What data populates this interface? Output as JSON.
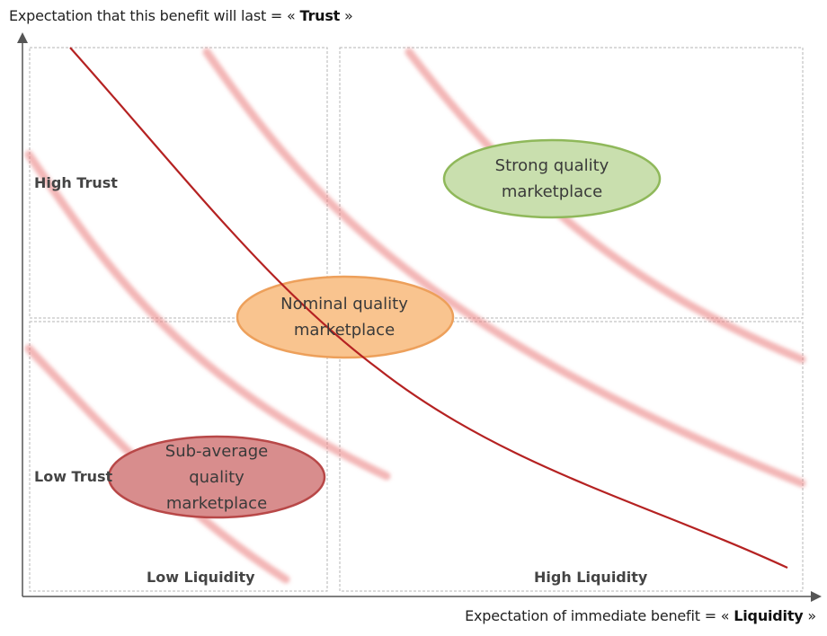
{
  "axes": {
    "y": {
      "prefix": "Expectation that this benefit will last = «",
      "keyword": "Trust",
      "suffix": "»"
    },
    "x": {
      "prefix": "Expectation of immediate benefit = «",
      "keyword": "Liquidity",
      "suffix": "»"
    }
  },
  "quadrant_labels": {
    "high_trust": "High Trust",
    "low_trust": "Low Trust",
    "low_liquidity": "Low Liquidity",
    "high_liquidity": "High Liquidity"
  },
  "markets": {
    "strong": {
      "lines": [
        "Strong quality",
        "marketplace"
      ],
      "fill": "#c9dfae",
      "stroke": "#8fb85a"
    },
    "nominal": {
      "lines": [
        "Nominal quality",
        "marketplace"
      ],
      "fill": "#f9c48f",
      "stroke": "#eda05b"
    },
    "sub_average": {
      "lines": [
        "Sub-average",
        "quality",
        "marketplace"
      ],
      "fill": "#d88d8d",
      "stroke": "#b84848"
    }
  },
  "colors": {
    "main_curve": "#b52222",
    "indifference_curves": "#ea7a7a",
    "axis": "#555555",
    "grid": "#b5b5b5"
  }
}
